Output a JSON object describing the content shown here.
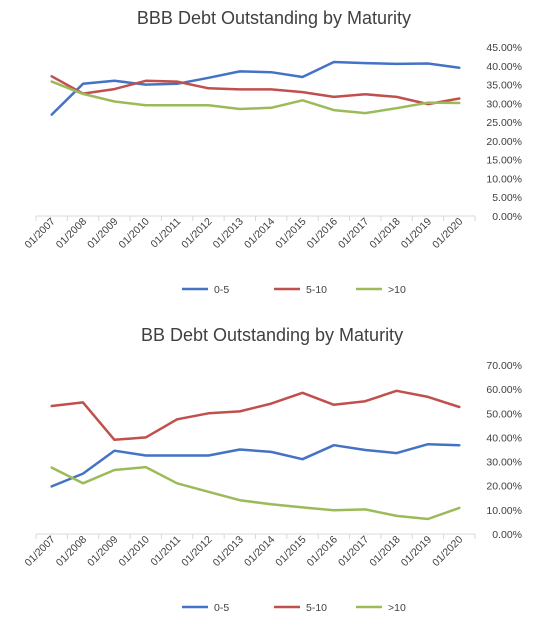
{
  "chart_data": [
    {
      "type": "line",
      "title": "BBB Debt Outstanding by Maturity",
      "categories": [
        "01/2007",
        "01/2008",
        "01/2009",
        "01/2010",
        "01/2011",
        "01/2012",
        "01/2013",
        "01/2014",
        "01/2015",
        "01/2016",
        "01/2017",
        "01/2018",
        "01/2019",
        "01/2020"
      ],
      "series": [
        {
          "name": "0-5",
          "color": "#4472C4",
          "values": [
            0.27,
            0.352,
            0.36,
            0.35,
            0.352,
            0.368,
            0.385,
            0.383,
            0.37,
            0.41,
            0.407,
            0.405,
            0.406,
            0.395
          ]
        },
        {
          "name": "5-10",
          "color": "#C0504D",
          "values": [
            0.372,
            0.326,
            0.338,
            0.36,
            0.358,
            0.34,
            0.337,
            0.337,
            0.33,
            0.317,
            0.324,
            0.317,
            0.298,
            0.313
          ]
        },
        {
          "name": ">10",
          "color": "#9BBB59",
          "values": [
            0.358,
            0.325,
            0.305,
            0.295,
            0.295,
            0.295,
            0.285,
            0.288,
            0.308,
            0.282,
            0.274,
            0.287,
            0.302,
            0.301
          ]
        }
      ],
      "y_ticks": [
        "0.00%",
        "5.00%",
        "10.00%",
        "15.00%",
        "20.00%",
        "25.00%",
        "30.00%",
        "35.00%",
        "40.00%",
        "45.00%"
      ],
      "ylim": [
        0,
        0.45
      ],
      "grid": false,
      "legend": "bottom"
    },
    {
      "type": "line",
      "title": "BB Debt Outstanding by Maturity",
      "categories": [
        "01/2007",
        "01/2008",
        "01/2009",
        "01/2010",
        "01/2011",
        "01/2012",
        "01/2013",
        "01/2014",
        "01/2015",
        "01/2016",
        "01/2017",
        "01/2018",
        "01/2019",
        "01/2020"
      ],
      "series": [
        {
          "name": "0-5",
          "color": "#4472C4",
          "values": [
            0.197,
            0.25,
            0.345,
            0.325,
            0.325,
            0.325,
            0.35,
            0.34,
            0.31,
            0.368,
            0.348,
            0.335,
            0.372,
            0.368
          ]
        },
        {
          "name": "5-10",
          "color": "#C0504D",
          "values": [
            0.53,
            0.545,
            0.39,
            0.4,
            0.475,
            0.5,
            0.508,
            0.54,
            0.585,
            0.535,
            0.55,
            0.593,
            0.568,
            0.526
          ]
        },
        {
          "name": ">10",
          "color": "#9BBB59",
          "values": [
            0.275,
            0.21,
            0.265,
            0.277,
            0.21,
            0.175,
            0.14,
            0.123,
            0.11,
            0.098,
            0.102,
            0.075,
            0.062,
            0.108
          ]
        }
      ],
      "y_ticks": [
        "0.00%",
        "10.00%",
        "20.00%",
        "30.00%",
        "40.00%",
        "50.00%",
        "60.00%",
        "70.00%"
      ],
      "ylim": [
        0,
        0.7
      ],
      "grid": false,
      "legend": "bottom"
    }
  ]
}
